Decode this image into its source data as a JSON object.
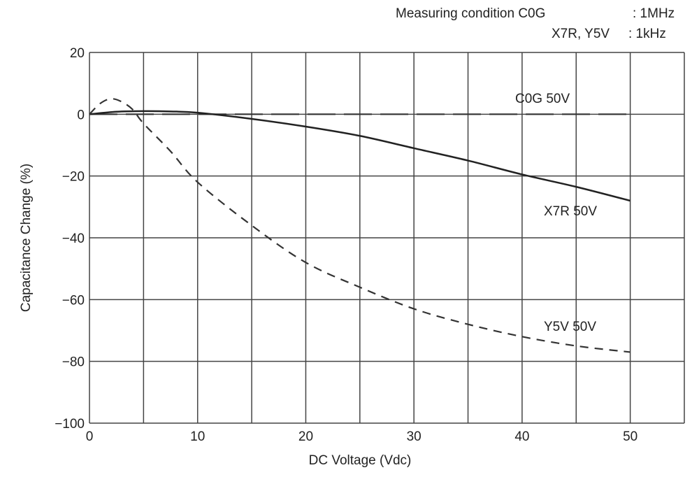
{
  "annotation": {
    "line1_label": "Measuring condition C0G",
    "line1_value": ": 1MHz",
    "line2_label": "X7R, Y5V",
    "line2_value": ": 1kHz"
  },
  "chart_data": {
    "type": "line",
    "title": "",
    "xlabel": "DC Voltage (Vdc)",
    "ylabel": "Capacitance Change (%)",
    "xlim": [
      0,
      55
    ],
    "ylim": [
      -100,
      20
    ],
    "xticks": [
      0,
      10,
      20,
      30,
      40,
      50
    ],
    "yticks": [
      20,
      0,
      -20,
      -40,
      -60,
      -80,
      -100
    ],
    "ytick_labels": [
      "20",
      "0",
      "−20",
      "−40",
      "−60",
      "−80",
      "−100"
    ],
    "grid": true,
    "grid_x_step": 5,
    "grid_y_step": 20,
    "legend": "none (inline labels)",
    "series": [
      {
        "name": "C0G 50V",
        "style": "long-dash",
        "color": "#333333",
        "x": [
          0,
          50
        ],
        "y": [
          0,
          0
        ]
      },
      {
        "name": "X7R 50V",
        "style": "solid",
        "color": "#222222",
        "x": [
          0,
          2.5,
          5,
          7.5,
          10,
          15,
          20,
          25,
          30,
          35,
          40,
          45,
          50
        ],
        "y": [
          0,
          0.8,
          1,
          0.9,
          0.5,
          -1.5,
          -4,
          -7,
          -11,
          -15,
          -19.5,
          -23.5,
          -28
        ]
      },
      {
        "name": "Y5V 50V",
        "style": "dashed",
        "color": "#333333",
        "x": [
          0,
          1,
          2,
          3,
          4,
          5,
          7.5,
          10,
          15,
          20,
          25,
          30,
          35,
          40,
          45,
          50
        ],
        "y": [
          0,
          3.5,
          5,
          4,
          1.5,
          -3,
          -12,
          -22,
          -36,
          -48,
          -56,
          -63,
          -68,
          -72,
          -75,
          -77
        ]
      }
    ]
  }
}
